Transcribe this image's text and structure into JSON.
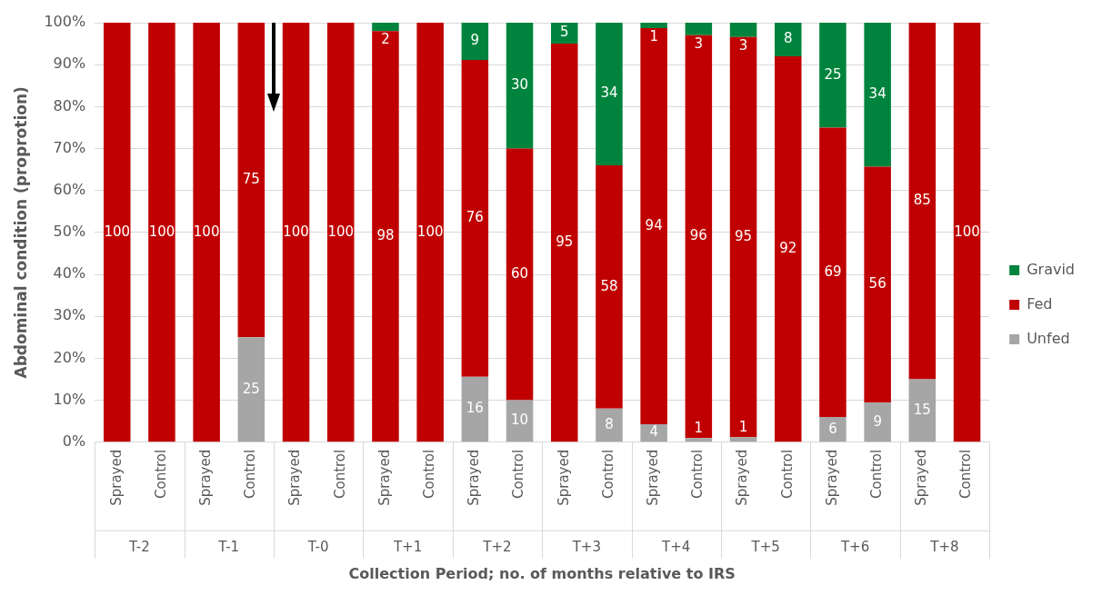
{
  "chart_data": {
    "type": "bar",
    "stacked": true,
    "xlabel": "Collection Period; no. of months relative to IRS",
    "ylabel": "Abdominal condition (proprotion)",
    "categories": [
      "Sprayed",
      "Control",
      "Sprayed",
      "Control",
      "Sprayed",
      "Control",
      "Sprayed",
      "Control",
      "Sprayed",
      "Control",
      "Sprayed",
      "Control",
      "Sprayed",
      "Control",
      "Sprayed",
      "Control",
      "Sprayed",
      "Control",
      "Sprayed",
      "Control"
    ],
    "annotations": [
      "T-2",
      "T-1",
      "T-0",
      "T+1",
      "T+2",
      "T+3",
      "T+4",
      "T+5",
      "T+6",
      "T+8"
    ],
    "series": [
      {
        "name": "Unfed",
        "color": "#a6a6a6",
        "values": [
          0,
          0,
          0,
          25,
          0,
          0,
          0,
          0,
          15.6,
          10,
          0,
          8,
          4.3,
          1,
          1.2,
          0,
          6,
          9.4,
          15,
          0
        ],
        "value_labels": [
          null,
          null,
          null,
          "25",
          null,
          null,
          null,
          null,
          "16",
          "10",
          null,
          "8",
          "4",
          "1",
          "1",
          null,
          "6",
          "9",
          "15",
          null
        ]
      },
      {
        "name": "Fed",
        "color": "#c00000",
        "values": [
          100,
          100,
          100,
          75,
          100,
          100,
          98,
          100,
          75.5,
          60,
          95,
          58,
          94.4,
          96,
          95.4,
          92,
          69,
          56.3,
          85,
          100
        ],
        "value_labels": [
          "100",
          "100",
          "100",
          "75",
          "100",
          "100",
          "98",
          "100",
          "76",
          "60",
          "95",
          "58",
          "94",
          "96",
          "95",
          "92",
          "69",
          "56",
          "85",
          "100"
        ]
      },
      {
        "name": "Gravid",
        "color": "#00843d",
        "values": [
          0,
          0,
          0,
          0,
          0,
          0,
          2,
          0,
          8.9,
          30,
          5,
          34,
          1.3,
          3,
          3.4,
          8,
          25,
          34.3,
          0,
          0
        ],
        "value_labels": [
          null,
          null,
          null,
          null,
          null,
          null,
          "2",
          null,
          "9",
          "30",
          "5",
          "34",
          "1",
          "3",
          "3",
          "8",
          "25",
          "34",
          null,
          null
        ]
      }
    ],
    "ylim": [
      0,
      100
    ],
    "yticks": [
      {
        "value": 0,
        "label": "0%"
      },
      {
        "value": 10,
        "label": "10%"
      },
      {
        "value": 20,
        "label": "20%"
      },
      {
        "value": 30,
        "label": "30%"
      },
      {
        "value": 40,
        "label": "40%"
      },
      {
        "value": 50,
        "label": "50%"
      },
      {
        "value": 60,
        "label": "60%"
      },
      {
        "value": 70,
        "label": "70%"
      },
      {
        "value": 80,
        "label": "80%"
      },
      {
        "value": 90,
        "label": "90%"
      },
      {
        "value": 100,
        "label": "100%"
      }
    ],
    "grid": "y",
    "legend": "right"
  }
}
